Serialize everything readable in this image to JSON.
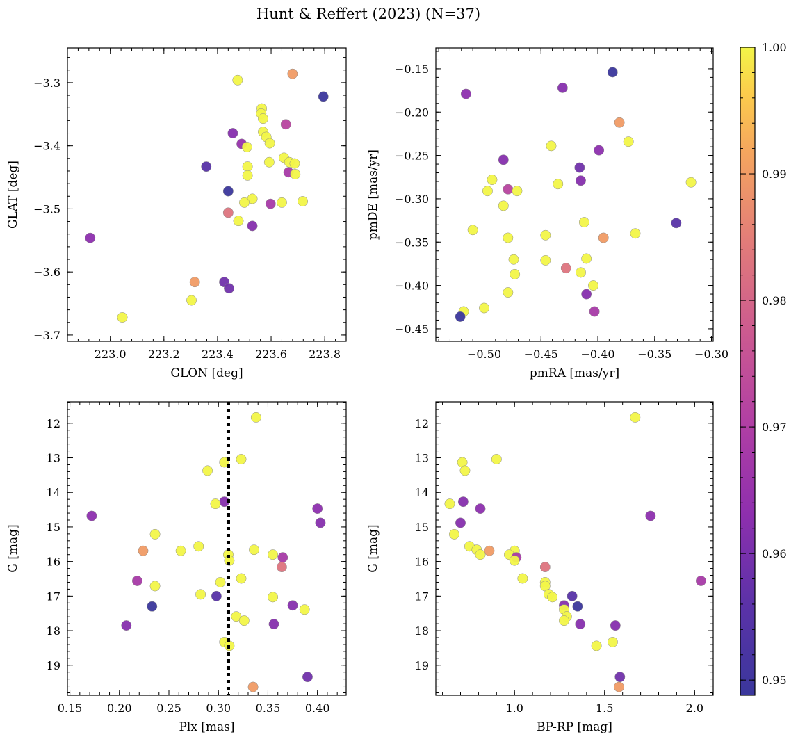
{
  "title": "Hunt & Reffert (2023) (N=37)",
  "colorbar": {
    "range": [
      0.9488,
      1.0
    ],
    "ticks": [
      0.95,
      0.96,
      0.97,
      0.98,
      0.99,
      1.0
    ],
    "tick_labels": [
      "0.95",
      "0.96",
      "0.97",
      "0.98",
      "0.99",
      "1.00"
    ],
    "colormap": "plasma"
  },
  "chart_data": [
    {
      "type": "scatter",
      "name": "position",
      "xlabel": "GLON [deg]",
      "ylabel": "GLAT [deg]",
      "xlim": [
        222.84,
        223.88
      ],
      "ylim": [
        -3.71,
        -3.245
      ],
      "y_inverted": false,
      "xticks": [
        223.0,
        223.2,
        223.4,
        223.6,
        223.8
      ],
      "xtick_labels": [
        "223.0",
        "223.2",
        "223.4",
        "223.6",
        "223.8"
      ],
      "yticks": [
        -3.7,
        -3.6,
        -3.5,
        -3.4,
        -3.3
      ],
      "ytick_labels": [
        "−3.7",
        "−3.6",
        "−3.5",
        "−3.4",
        "−3.3"
      ],
      "points": [
        {
          "x": 223.475,
          "y": -3.296,
          "c": 1.0
        },
        {
          "x": 223.68,
          "y": -3.286,
          "c": 0.99
        },
        {
          "x": 223.795,
          "y": -3.322,
          "c": 0.949
        },
        {
          "x": 223.565,
          "y": -3.341,
          "c": 1.0
        },
        {
          "x": 223.563,
          "y": -3.349,
          "c": 1.0
        },
        {
          "x": 223.57,
          "y": -3.357,
          "c": 1.0
        },
        {
          "x": 223.655,
          "y": -3.366,
          "c": 0.972
        },
        {
          "x": 223.457,
          "y": -3.38,
          "c": 0.962
        },
        {
          "x": 223.57,
          "y": -3.378,
          "c": 1.0
        },
        {
          "x": 223.582,
          "y": -3.386,
          "c": 1.0
        },
        {
          "x": 223.49,
          "y": -3.397,
          "c": 0.965
        },
        {
          "x": 223.51,
          "y": -3.402,
          "c": 1.0
        },
        {
          "x": 223.595,
          "y": -3.396,
          "c": 1.0
        },
        {
          "x": 223.648,
          "y": -3.419,
          "c": 1.0
        },
        {
          "x": 223.668,
          "y": -3.426,
          "c": 1.0
        },
        {
          "x": 223.688,
          "y": -3.428,
          "c": 1.0
        },
        {
          "x": 223.593,
          "y": -3.426,
          "c": 1.0
        },
        {
          "x": 223.358,
          "y": -3.433,
          "c": 0.955
        },
        {
          "x": 223.512,
          "y": -3.433,
          "c": 1.0
        },
        {
          "x": 223.665,
          "y": -3.442,
          "c": 0.968
        },
        {
          "x": 223.69,
          "y": -3.445,
          "c": 1.0
        },
        {
          "x": 223.512,
          "y": -3.447,
          "c": 1.0
        },
        {
          "x": 223.44,
          "y": -3.472,
          "c": 0.949
        },
        {
          "x": 223.53,
          "y": -3.484,
          "c": 1.0
        },
        {
          "x": 223.5,
          "y": -3.49,
          "c": 1.0
        },
        {
          "x": 223.64,
          "y": -3.49,
          "c": 1.0
        },
        {
          "x": 223.598,
          "y": -3.492,
          "c": 0.968
        },
        {
          "x": 223.718,
          "y": -3.488,
          "c": 1.0
        },
        {
          "x": 223.44,
          "y": -3.506,
          "c": 0.983
        },
        {
          "x": 223.478,
          "y": -3.519,
          "c": 1.0
        },
        {
          "x": 223.53,
          "y": -3.527,
          "c": 0.962
        },
        {
          "x": 222.925,
          "y": -3.546,
          "c": 0.963
        },
        {
          "x": 223.315,
          "y": -3.616,
          "c": 0.99
        },
        {
          "x": 223.425,
          "y": -3.616,
          "c": 0.959
        },
        {
          "x": 223.443,
          "y": -3.626,
          "c": 0.959
        },
        {
          "x": 223.303,
          "y": -3.645,
          "c": 1.0
        },
        {
          "x": 223.045,
          "y": -3.672,
          "c": 1.0
        }
      ]
    },
    {
      "type": "scatter",
      "name": "proper-motion",
      "xlabel": "pmRA [mas/yr]",
      "ylabel": "pmDE [mas/yr]",
      "xlim": [
        -0.5425,
        -0.2985
      ],
      "ylim": [
        -0.4645,
        -0.126
      ],
      "y_inverted": false,
      "xticks": [
        -0.5,
        -0.45,
        -0.4,
        -0.35,
        -0.3
      ],
      "xtick_labels": [
        "−0.50",
        "−0.45",
        "−0.40",
        "−0.35",
        "−0.30"
      ],
      "yticks": [
        -0.45,
        -0.4,
        -0.35,
        -0.3,
        -0.25,
        -0.2,
        -0.15
      ],
      "ytick_labels": [
        "−0.45",
        "−0.40",
        "−0.35",
        "−0.30",
        "−0.25",
        "−0.20",
        "−0.15"
      ],
      "points": [
        {
          "x": -0.387,
          "y": -0.154,
          "c": 0.949
        },
        {
          "x": -0.516,
          "y": -0.179,
          "c": 0.963
        },
        {
          "x": -0.431,
          "y": -0.172,
          "c": 0.962
        },
        {
          "x": -0.381,
          "y": -0.212,
          "c": 0.99
        },
        {
          "x": -0.373,
          "y": -0.234,
          "c": 1.0
        },
        {
          "x": -0.441,
          "y": -0.239,
          "c": 1.0
        },
        {
          "x": -0.399,
          "y": -0.244,
          "c": 0.963
        },
        {
          "x": -0.483,
          "y": -0.255,
          "c": 0.962
        },
        {
          "x": -0.416,
          "y": -0.264,
          "c": 0.959
        },
        {
          "x": -0.493,
          "y": -0.278,
          "c": 1.0
        },
        {
          "x": -0.415,
          "y": -0.279,
          "c": 0.962
        },
        {
          "x": -0.435,
          "y": -0.283,
          "c": 1.0
        },
        {
          "x": -0.318,
          "y": -0.281,
          "c": 1.0
        },
        {
          "x": -0.479,
          "y": -0.289,
          "c": 0.972
        },
        {
          "x": -0.497,
          "y": -0.291,
          "c": 1.0
        },
        {
          "x": -0.471,
          "y": -0.291,
          "c": 1.0
        },
        {
          "x": -0.483,
          "y": -0.308,
          "c": 1.0
        },
        {
          "x": -0.331,
          "y": -0.328,
          "c": 0.955
        },
        {
          "x": -0.412,
          "y": -0.327,
          "c": 1.0
        },
        {
          "x": -0.51,
          "y": -0.336,
          "c": 1.0
        },
        {
          "x": -0.367,
          "y": -0.34,
          "c": 1.0
        },
        {
          "x": -0.446,
          "y": -0.342,
          "c": 1.0
        },
        {
          "x": -0.479,
          "y": -0.345,
          "c": 1.0
        },
        {
          "x": -0.395,
          "y": -0.345,
          "c": 0.99
        },
        {
          "x": -0.474,
          "y": -0.37,
          "c": 1.0
        },
        {
          "x": -0.446,
          "y": -0.371,
          "c": 1.0
        },
        {
          "x": -0.41,
          "y": -0.369,
          "c": 1.0
        },
        {
          "x": -0.428,
          "y": -0.38,
          "c": 0.983
        },
        {
          "x": -0.473,
          "y": -0.387,
          "c": 1.0
        },
        {
          "x": -0.415,
          "y": -0.385,
          "c": 1.0
        },
        {
          "x": -0.404,
          "y": -0.4,
          "c": 1.0
        },
        {
          "x": -0.479,
          "y": -0.408,
          "c": 1.0
        },
        {
          "x": -0.41,
          "y": -0.41,
          "c": 0.962
        },
        {
          "x": -0.5,
          "y": -0.426,
          "c": 1.0
        },
        {
          "x": -0.403,
          "y": -0.43,
          "c": 0.968
        },
        {
          "x": -0.518,
          "y": -0.43,
          "c": 1.0
        },
        {
          "x": -0.521,
          "y": -0.436,
          "c": 0.949
        }
      ]
    },
    {
      "type": "scatter",
      "name": "parallax-magnitude",
      "xlabel": "Plx [mas]",
      "ylabel": "G [mag]",
      "xlim": [
        0.1475,
        0.429
      ],
      "ylim": [
        19.87,
        11.38
      ],
      "y_inverted": true,
      "xticks": [
        0.15,
        0.2,
        0.25,
        0.3,
        0.35,
        0.4
      ],
      "xtick_labels": [
        "0.15",
        "0.20",
        "0.25",
        "0.30",
        "0.35",
        "0.40"
      ],
      "yticks": [
        12,
        13,
        14,
        15,
        16,
        17,
        18,
        19
      ],
      "ytick_labels": [
        "12",
        "13",
        "14",
        "15",
        "16",
        "17",
        "18",
        "19"
      ],
      "vline": {
        "x": 0.31,
        "style": "dotted",
        "color": "#000000"
      },
      "points": [
        {
          "x": 0.338,
          "y": 11.83,
          "c": 1.0
        },
        {
          "x": 0.323,
          "y": 13.04,
          "c": 1.0
        },
        {
          "x": 0.306,
          "y": 13.13,
          "c": 1.0
        },
        {
          "x": 0.289,
          "y": 13.37,
          "c": 1.0
        },
        {
          "x": 0.306,
          "y": 14.27,
          "c": 0.962
        },
        {
          "x": 0.297,
          "y": 14.33,
          "c": 1.0
        },
        {
          "x": 0.4,
          "y": 14.47,
          "c": 0.963
        },
        {
          "x": 0.172,
          "y": 14.68,
          "c": 0.963
        },
        {
          "x": 0.403,
          "y": 14.88,
          "c": 0.962
        },
        {
          "x": 0.236,
          "y": 15.21,
          "c": 1.0
        },
        {
          "x": 0.28,
          "y": 15.56,
          "c": 1.0
        },
        {
          "x": 0.224,
          "y": 15.69,
          "c": 0.99
        },
        {
          "x": 0.262,
          "y": 15.69,
          "c": 1.0
        },
        {
          "x": 0.336,
          "y": 15.66,
          "c": 1.0
        },
        {
          "x": 0.355,
          "y": 15.8,
          "c": 1.0
        },
        {
          "x": 0.31,
          "y": 15.8,
          "c": 1.0
        },
        {
          "x": 0.365,
          "y": 15.88,
          "c": 0.968
        },
        {
          "x": 0.311,
          "y": 15.97,
          "c": 1.0
        },
        {
          "x": 0.364,
          "y": 16.16,
          "c": 0.983
        },
        {
          "x": 0.323,
          "y": 16.49,
          "c": 1.0
        },
        {
          "x": 0.218,
          "y": 16.56,
          "c": 0.968
        },
        {
          "x": 0.302,
          "y": 16.6,
          "c": 1.0
        },
        {
          "x": 0.236,
          "y": 16.71,
          "c": 1.0
        },
        {
          "x": 0.282,
          "y": 16.95,
          "c": 1.0
        },
        {
          "x": 0.298,
          "y": 17.0,
          "c": 0.955
        },
        {
          "x": 0.355,
          "y": 17.03,
          "c": 1.0
        },
        {
          "x": 0.375,
          "y": 17.27,
          "c": 0.962
        },
        {
          "x": 0.233,
          "y": 17.3,
          "c": 0.949
        },
        {
          "x": 0.387,
          "y": 17.39,
          "c": 1.0
        },
        {
          "x": 0.318,
          "y": 17.59,
          "c": 1.0
        },
        {
          "x": 0.326,
          "y": 17.71,
          "c": 1.0
        },
        {
          "x": 0.356,
          "y": 17.81,
          "c": 0.962
        },
        {
          "x": 0.207,
          "y": 17.85,
          "c": 0.962
        },
        {
          "x": 0.306,
          "y": 18.33,
          "c": 1.0
        },
        {
          "x": 0.311,
          "y": 18.44,
          "c": 1.0
        },
        {
          "x": 0.39,
          "y": 19.34,
          "c": 0.959
        },
        {
          "x": 0.335,
          "y": 19.63,
          "c": 0.99
        }
      ]
    },
    {
      "type": "scatter",
      "name": "colour-magnitude",
      "xlabel": "BP-RP [mag]",
      "ylabel": "G [mag]",
      "xlim": [
        0.563,
        2.103
      ],
      "ylim": [
        19.87,
        11.38
      ],
      "y_inverted": true,
      "xticks": [
        1.0,
        1.5,
        2.0
      ],
      "xtick_labels": [
        "1.0",
        "1.5",
        "2.0"
      ],
      "yticks": [
        12,
        13,
        14,
        15,
        16,
        17,
        18,
        19
      ],
      "ytick_labels": [
        "12",
        "13",
        "14",
        "15",
        "16",
        "17",
        "18",
        "19"
      ],
      "points": [
        {
          "x": 1.67,
          "y": 11.83,
          "c": 1.0
        },
        {
          "x": 0.9,
          "y": 13.04,
          "c": 1.0
        },
        {
          "x": 0.71,
          "y": 13.13,
          "c": 1.0
        },
        {
          "x": 0.725,
          "y": 13.37,
          "c": 1.0
        },
        {
          "x": 0.715,
          "y": 14.27,
          "c": 0.962
        },
        {
          "x": 0.64,
          "y": 14.33,
          "c": 1.0
        },
        {
          "x": 0.81,
          "y": 14.47,
          "c": 0.963
        },
        {
          "x": 1.755,
          "y": 14.68,
          "c": 0.963
        },
        {
          "x": 0.7,
          "y": 14.88,
          "c": 0.962
        },
        {
          "x": 0.665,
          "y": 15.21,
          "c": 1.0
        },
        {
          "x": 0.75,
          "y": 15.56,
          "c": 1.0
        },
        {
          "x": 0.86,
          "y": 15.69,
          "c": 0.99
        },
        {
          "x": 0.79,
          "y": 15.66,
          "c": 1.0
        },
        {
          "x": 1.0,
          "y": 15.69,
          "c": 1.0
        },
        {
          "x": 0.81,
          "y": 15.8,
          "c": 1.0
        },
        {
          "x": 0.97,
          "y": 15.8,
          "c": 1.0
        },
        {
          "x": 1.01,
          "y": 15.88,
          "c": 0.968
        },
        {
          "x": 1.0,
          "y": 15.97,
          "c": 1.0
        },
        {
          "x": 1.17,
          "y": 16.16,
          "c": 0.983
        },
        {
          "x": 1.045,
          "y": 16.49,
          "c": 1.0
        },
        {
          "x": 2.035,
          "y": 16.56,
          "c": 0.968
        },
        {
          "x": 1.17,
          "y": 16.6,
          "c": 1.0
        },
        {
          "x": 1.17,
          "y": 16.71,
          "c": 1.0
        },
        {
          "x": 1.19,
          "y": 16.95,
          "c": 1.0
        },
        {
          "x": 1.32,
          "y": 17.0,
          "c": 0.955
        },
        {
          "x": 1.21,
          "y": 17.03,
          "c": 1.0
        },
        {
          "x": 1.275,
          "y": 17.27,
          "c": 0.962
        },
        {
          "x": 1.35,
          "y": 17.3,
          "c": 0.949
        },
        {
          "x": 1.275,
          "y": 17.39,
          "c": 1.0
        },
        {
          "x": 1.29,
          "y": 17.59,
          "c": 1.0
        },
        {
          "x": 1.275,
          "y": 17.71,
          "c": 1.0
        },
        {
          "x": 1.365,
          "y": 17.81,
          "c": 0.962
        },
        {
          "x": 1.56,
          "y": 17.85,
          "c": 0.962
        },
        {
          "x": 1.545,
          "y": 18.33,
          "c": 1.0
        },
        {
          "x": 1.455,
          "y": 18.44,
          "c": 1.0
        },
        {
          "x": 1.585,
          "y": 19.34,
          "c": 0.959
        },
        {
          "x": 1.58,
          "y": 19.63,
          "c": 0.99
        }
      ]
    }
  ]
}
